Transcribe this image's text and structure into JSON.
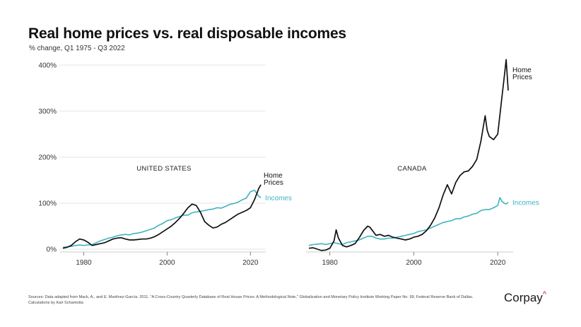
{
  "title": "Real home prices vs. real disposable incomes",
  "subtitle": "% change, Q1 1975 - Q3 2022",
  "sources": "Sources: Data adapted from Mack, A., and E. Martínez-García. 2011. \"A Cross-Country Quarterly Database of Real House Prices: A Methodological Note,\" Globalization and Monetary Policy Institute Working Paper No. 99, Federal Reserve Bank of Dallas. Calculations by Karl Schamotta",
  "logo": {
    "text": "Corpay",
    "mark": "^"
  },
  "colors": {
    "home_prices": "#111111",
    "incomes": "#3fb3be"
  },
  "chart_data": [
    {
      "type": "line",
      "panel": "UNITED STATES",
      "ylim": [
        0,
        400
      ],
      "yticks": [
        {
          "value": 0,
          "label": "0%"
        },
        {
          "value": 100,
          "label": "100%"
        },
        {
          "value": 200,
          "label": "200%"
        },
        {
          "value": 300,
          "label": "300%"
        },
        {
          "value": 400,
          "label": "400%"
        }
      ],
      "xlim": [
        1975,
        2023
      ],
      "xticks": [
        {
          "value": 1980,
          "label": "1980"
        },
        {
          "value": 2000,
          "label": "2000"
        },
        {
          "value": 2020,
          "label": "2020"
        }
      ],
      "series": [
        {
          "name": "Home\nPrices",
          "color": "#111111",
          "points": [
            [
              1975,
              2
            ],
            [
              1976,
              4
            ],
            [
              1977,
              8
            ],
            [
              1978,
              16
            ],
            [
              1979,
              22
            ],
            [
              1980,
              20
            ],
            [
              1981,
              15
            ],
            [
              1982,
              8
            ],
            [
              1983,
              10
            ],
            [
              1984,
              12
            ],
            [
              1985,
              14
            ],
            [
              1986,
              18
            ],
            [
              1987,
              22
            ],
            [
              1988,
              24
            ],
            [
              1989,
              25
            ],
            [
              1990,
              22
            ],
            [
              1991,
              20
            ],
            [
              1992,
              20
            ],
            [
              1993,
              21
            ],
            [
              1994,
              22
            ],
            [
              1995,
              22
            ],
            [
              1996,
              24
            ],
            [
              1997,
              27
            ],
            [
              1998,
              32
            ],
            [
              1999,
              38
            ],
            [
              2000,
              44
            ],
            [
              2001,
              50
            ],
            [
              2002,
              58
            ],
            [
              2003,
              67
            ],
            [
              2004,
              78
            ],
            [
              2005,
              90
            ],
            [
              2006,
              98
            ],
            [
              2007,
              95
            ],
            [
              2008,
              80
            ],
            [
              2009,
              60
            ],
            [
              2010,
              52
            ],
            [
              2011,
              46
            ],
            [
              2012,
              48
            ],
            [
              2013,
              54
            ],
            [
              2014,
              58
            ],
            [
              2015,
              64
            ],
            [
              2016,
              70
            ],
            [
              2017,
              76
            ],
            [
              2018,
              80
            ],
            [
              2019,
              84
            ],
            [
              2020,
              90
            ],
            [
              2021,
              108
            ],
            [
              2022,
              132
            ],
            [
              2022.5,
              140
            ]
          ]
        },
        {
          "name": "Incomes",
          "color": "#3fb3be",
          "points": [
            [
              1975,
              4
            ],
            [
              1976,
              5
            ],
            [
              1977,
              6
            ],
            [
              1978,
              8
            ],
            [
              1979,
              9
            ],
            [
              1980,
              8
            ],
            [
              1981,
              9
            ],
            [
              1982,
              10
            ],
            [
              1983,
              14
            ],
            [
              1984,
              18
            ],
            [
              1985,
              21
            ],
            [
              1986,
              24
            ],
            [
              1987,
              26
            ],
            [
              1988,
              29
            ],
            [
              1989,
              31
            ],
            [
              1990,
              32
            ],
            [
              1991,
              31
            ],
            [
              1992,
              34
            ],
            [
              1993,
              35
            ],
            [
              1994,
              37
            ],
            [
              1995,
              40
            ],
            [
              1996,
              43
            ],
            [
              1997,
              46
            ],
            [
              1998,
              52
            ],
            [
              1999,
              56
            ],
            [
              2000,
              62
            ],
            [
              2001,
              64
            ],
            [
              2002,
              68
            ],
            [
              2003,
              71
            ],
            [
              2004,
              74
            ],
            [
              2005,
              74
            ],
            [
              2006,
              79
            ],
            [
              2007,
              81
            ],
            [
              2008,
              82
            ],
            [
              2009,
              84
            ],
            [
              2010,
              86
            ],
            [
              2011,
              87
            ],
            [
              2012,
              90
            ],
            [
              2013,
              89
            ],
            [
              2014,
              93
            ],
            [
              2015,
              97
            ],
            [
              2016,
              99
            ],
            [
              2017,
              102
            ],
            [
              2018,
              107
            ],
            [
              2019,
              111
            ],
            [
              2020,
              125
            ],
            [
              2021,
              128
            ],
            [
              2022,
              115
            ],
            [
              2022.5,
              112
            ]
          ]
        }
      ]
    },
    {
      "type": "line",
      "panel": "CANADA",
      "ylim": [
        0,
        400
      ],
      "xlim": [
        1975,
        2023
      ],
      "xticks": [
        {
          "value": 1980,
          "label": "1980"
        },
        {
          "value": 2000,
          "label": "2000"
        },
        {
          "value": 2020,
          "label": "2020"
        }
      ],
      "series": [
        {
          "name": "Home\nPrices",
          "color": "#111111",
          "points": [
            [
              1975,
              2
            ],
            [
              1976,
              3
            ],
            [
              1977,
              0
            ],
            [
              1978,
              -3
            ],
            [
              1979,
              -2
            ],
            [
              1980,
              2
            ],
            [
              1981,
              18
            ],
            [
              1981.5,
              42
            ],
            [
              1982,
              25
            ],
            [
              1983,
              8
            ],
            [
              1984,
              5
            ],
            [
              1985,
              8
            ],
            [
              1986,
              12
            ],
            [
              1987,
              25
            ],
            [
              1988,
              40
            ],
            [
              1989,
              50
            ],
            [
              1989.5,
              48
            ],
            [
              1990,
              42
            ],
            [
              1991,
              30
            ],
            [
              1992,
              32
            ],
            [
              1993,
              28
            ],
            [
              1994,
              30
            ],
            [
              1995,
              26
            ],
            [
              1996,
              24
            ],
            [
              1997,
              22
            ],
            [
              1998,
              20
            ],
            [
              1999,
              22
            ],
            [
              2000,
              26
            ],
            [
              2001,
              28
            ],
            [
              2002,
              32
            ],
            [
              2003,
              40
            ],
            [
              2004,
              52
            ],
            [
              2005,
              68
            ],
            [
              2006,
              90
            ],
            [
              2007,
              118
            ],
            [
              2008,
              140
            ],
            [
              2009,
              120
            ],
            [
              2010,
              145
            ],
            [
              2011,
              160
            ],
            [
              2012,
              168
            ],
            [
              2013,
              170
            ],
            [
              2014,
              180
            ],
            [
              2015,
              195
            ],
            [
              2016,
              235
            ],
            [
              2017,
              290
            ],
            [
              2017.5,
              258
            ],
            [
              2018,
              245
            ],
            [
              2019,
              238
            ],
            [
              2020,
              250
            ],
            [
              2021,
              330
            ],
            [
              2021.5,
              370
            ],
            [
              2022,
              412
            ],
            [
              2022.5,
              345
            ]
          ]
        },
        {
          "name": "Incomes",
          "color": "#3fb3be",
          "points": [
            [
              1975,
              8
            ],
            [
              1976,
              10
            ],
            [
              1977,
              11
            ],
            [
              1978,
              12
            ],
            [
              1979,
              10
            ],
            [
              1980,
              12
            ],
            [
              1981,
              14
            ],
            [
              1982,
              12
            ],
            [
              1983,
              10
            ],
            [
              1984,
              14
            ],
            [
              1985,
              16
            ],
            [
              1986,
              18
            ],
            [
              1987,
              20
            ],
            [
              1988,
              24
            ],
            [
              1989,
              28
            ],
            [
              1990,
              28
            ],
            [
              1991,
              24
            ],
            [
              1992,
              22
            ],
            [
              1993,
              22
            ],
            [
              1994,
              24
            ],
            [
              1995,
              24
            ],
            [
              1996,
              26
            ],
            [
              1997,
              28
            ],
            [
              1998,
              30
            ],
            [
              1999,
              32
            ],
            [
              2000,
              34
            ],
            [
              2001,
              38
            ],
            [
              2002,
              40
            ],
            [
              2003,
              42
            ],
            [
              2004,
              46
            ],
            [
              2005,
              50
            ],
            [
              2006,
              54
            ],
            [
              2007,
              58
            ],
            [
              2008,
              60
            ],
            [
              2009,
              62
            ],
            [
              2010,
              66
            ],
            [
              2011,
              66
            ],
            [
              2012,
              70
            ],
            [
              2013,
              72
            ],
            [
              2014,
              76
            ],
            [
              2015,
              78
            ],
            [
              2016,
              84
            ],
            [
              2017,
              86
            ],
            [
              2018,
              86
            ],
            [
              2019,
              90
            ],
            [
              2020,
              95
            ],
            [
              2020.5,
              112
            ],
            [
              2021,
              104
            ],
            [
              2021.5,
              100
            ],
            [
              2022,
              98
            ],
            [
              2022.5,
              102
            ]
          ]
        }
      ]
    }
  ]
}
